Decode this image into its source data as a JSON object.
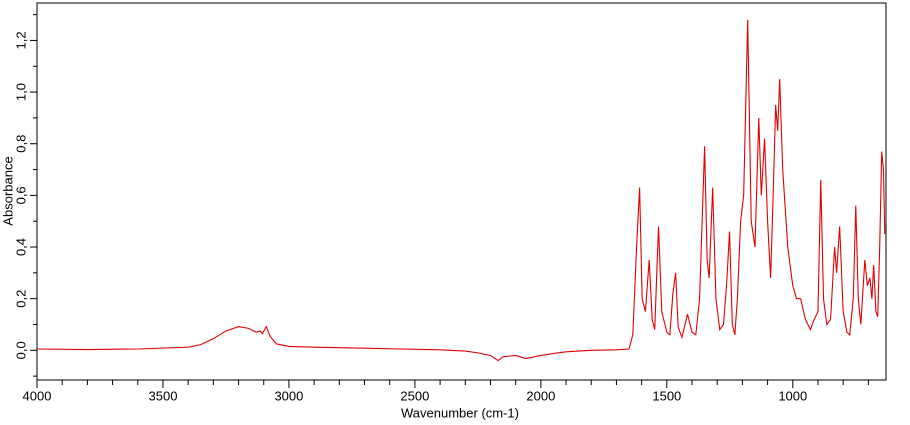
{
  "chart_data": {
    "type": "line",
    "xlabel": "Wavenumber (cm-1)",
    "ylabel": "Absorbance",
    "xlim": [
      4000,
      630
    ],
    "ylim": [
      -0.115,
      1.345
    ],
    "xticks": [
      4000,
      3500,
      3000,
      2500,
      2000,
      1500,
      1000
    ],
    "xminorticks": [
      3900,
      3800,
      3700,
      3600,
      3400,
      3300,
      3200,
      3100,
      2900,
      2800,
      2700,
      2600,
      2400,
      2300,
      2200,
      2100,
      1900,
      1800,
      1700,
      1600,
      1400,
      1300,
      1200,
      1100,
      900,
      800,
      700
    ],
    "yticks": [
      {
        "value": 0,
        "label": "0,0"
      },
      {
        "value": 0.2,
        "label": "0,2"
      },
      {
        "value": 0.4,
        "label": "0,4"
      },
      {
        "value": 0.6,
        "label": "0,6"
      },
      {
        "value": 0.8,
        "label": "0,8"
      },
      {
        "value": 1.0,
        "label": "1,0"
      },
      {
        "value": 1.2,
        "label": "1,2"
      }
    ],
    "yminorticks": [
      -0.1,
      0.1,
      0.3,
      0.5,
      0.7,
      0.9,
      1.1,
      1.3
    ],
    "series": [
      {
        "color": "#e00000",
        "x": [
          4000,
          3800,
          3600,
          3400,
          3350,
          3300,
          3250,
          3200,
          3160,
          3130,
          3115,
          3105,
          3090,
          3075,
          3050,
          3000,
          2900,
          2800,
          2600,
          2400,
          2300,
          2250,
          2200,
          2170,
          2150,
          2100,
          2060,
          2000,
          1950,
          1900,
          1800,
          1700,
          1650,
          1635,
          1620,
          1608,
          1598,
          1585,
          1570,
          1558,
          1548,
          1533,
          1520,
          1500,
          1488,
          1476,
          1465,
          1455,
          1440,
          1418,
          1400,
          1385,
          1370,
          1350,
          1340,
          1332,
          1318,
          1305,
          1290,
          1275,
          1263,
          1251,
          1240,
          1230,
          1220,
          1207,
          1195,
          1179,
          1165,
          1150,
          1135,
          1125,
          1112,
          1100,
          1088,
          1078,
          1068,
          1060,
          1052,
          1040,
          1020,
          1000,
          985,
          969,
          950,
          930,
          915,
          900,
          889,
          878,
          865,
          850,
          834,
          826,
          814,
          800,
          785,
          774,
          760,
          750,
          740,
          730,
          714,
          704,
          694,
          686,
          679,
          670,
          663,
          655,
          647,
          640,
          635
        ],
        "values": [
          0.005,
          0.003,
          0.005,
          0.012,
          0.022,
          0.045,
          0.075,
          0.092,
          0.085,
          0.07,
          0.075,
          0.065,
          0.092,
          0.055,
          0.025,
          0.015,
          0.012,
          0.01,
          0.006,
          0.002,
          -0.003,
          -0.01,
          -0.02,
          -0.04,
          -0.025,
          -0.02,
          -0.032,
          -0.02,
          -0.012,
          -0.006,
          0.0,
          0.002,
          0.005,
          0.06,
          0.4,
          0.63,
          0.2,
          0.15,
          0.35,
          0.12,
          0.08,
          0.48,
          0.15,
          0.07,
          0.06,
          0.22,
          0.3,
          0.09,
          0.05,
          0.14,
          0.07,
          0.06,
          0.2,
          0.79,
          0.35,
          0.28,
          0.63,
          0.2,
          0.08,
          0.1,
          0.25,
          0.46,
          0.1,
          0.06,
          0.2,
          0.5,
          0.6,
          1.28,
          0.5,
          0.4,
          0.9,
          0.6,
          0.82,
          0.5,
          0.28,
          0.6,
          0.95,
          0.85,
          1.05,
          0.7,
          0.4,
          0.25,
          0.2,
          0.2,
          0.12,
          0.08,
          0.12,
          0.15,
          0.66,
          0.2,
          0.1,
          0.12,
          0.4,
          0.3,
          0.48,
          0.15,
          0.07,
          0.06,
          0.2,
          0.56,
          0.2,
          0.1,
          0.35,
          0.25,
          0.28,
          0.2,
          0.33,
          0.15,
          0.13,
          0.4,
          0.77,
          0.7,
          0.45
        ]
      }
    ]
  }
}
